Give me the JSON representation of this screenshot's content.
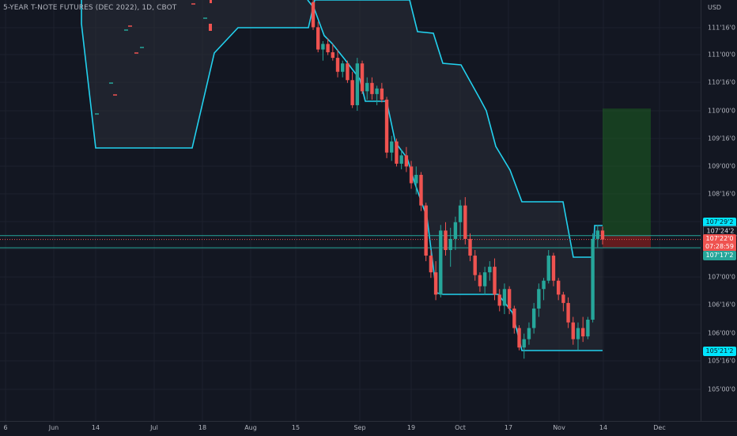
{
  "symbol": {
    "title": "5-YEAR T-NOTE FUTURES (DEC 2022), 1D, CBOT"
  },
  "price_axis": {
    "currency": "USD",
    "ticks": [
      "111'16'0",
      "111'00'0",
      "110'16'0",
      "110'00'0",
      "109'16'0",
      "109'00'0",
      "108'16'0",
      "107'00'0",
      "106'16'0",
      "106'00'0",
      "105'16'0",
      "105'00'0"
    ],
    "labels": {
      "upper_band": "107'29'2",
      "trade_high": "107'24'2",
      "last_price": "107'22'0",
      "countdown": "07:28:59",
      "stop_level": "107'17'2",
      "lower_band": "105'21'2"
    }
  },
  "time_axis": {
    "ticks": [
      "6",
      "Jun",
      "14",
      "Jul",
      "18",
      "Aug",
      "15",
      "Sep",
      "19",
      "Oct",
      "17",
      "Nov",
      "14",
      "Dec"
    ]
  },
  "colors": {
    "background": "#131722",
    "grid": "#1e222d",
    "up": "#26a69a",
    "down": "#ef5350",
    "channel": "#22d1ee",
    "target_zone": "#1b5e20",
    "stop_zone": "#7f1d1d"
  },
  "chart_data": {
    "type": "candlestick",
    "title": "5-YEAR T-NOTE FUTURES (DEC 2022), 1D, CBOT",
    "y_unit": "USD (32nds)",
    "ylim": [
      104.8,
      112.0
    ],
    "upper_channel_line": "cyan step line (Donchian-style)",
    "levels": {
      "upper_band": 107.91,
      "trade_high": 107.76,
      "last_price": 107.69,
      "stop_level": 107.54,
      "lower_band": 105.66,
      "target": 110.04
    },
    "candles": [
      {
        "date": "Aug 22",
        "o": 111.95,
        "h": 112.0,
        "l": 111.45,
        "c": 111.5
      },
      {
        "date": "Aug 23",
        "o": 111.5,
        "h": 111.6,
        "l": 111.05,
        "c": 111.1
      },
      {
        "date": "Aug 24",
        "o": 111.1,
        "h": 111.25,
        "l": 110.9,
        "c": 111.2
      },
      {
        "date": "Aug 25",
        "o": 111.2,
        "h": 111.3,
        "l": 111.0,
        "c": 111.05
      },
      {
        "date": "Aug 26",
        "o": 111.05,
        "h": 111.2,
        "l": 110.9,
        "c": 110.95
      },
      {
        "date": "Aug 29",
        "o": 110.95,
        "h": 111.1,
        "l": 110.6,
        "c": 110.7
      },
      {
        "date": "Aug 30",
        "o": 110.7,
        "h": 110.9,
        "l": 110.6,
        "c": 110.85
      },
      {
        "date": "Aug 31",
        "o": 110.85,
        "h": 110.9,
        "l": 110.5,
        "c": 110.55
      },
      {
        "date": "Sep 1",
        "o": 110.55,
        "h": 110.7,
        "l": 110.05,
        "c": 110.1
      },
      {
        "date": "Sep 2",
        "o": 110.1,
        "h": 110.95,
        "l": 110.0,
        "c": 110.85
      },
      {
        "date": "Sep 6",
        "o": 110.85,
        "h": 110.9,
        "l": 110.3,
        "c": 110.35
      },
      {
        "date": "Sep 7",
        "o": 110.35,
        "h": 110.6,
        "l": 110.2,
        "c": 110.5
      },
      {
        "date": "Sep 8",
        "o": 110.5,
        "h": 110.6,
        "l": 110.2,
        "c": 110.3
      },
      {
        "date": "Sep 9",
        "o": 110.3,
        "h": 110.45,
        "l": 110.1,
        "c": 110.4
      },
      {
        "date": "Sep 12",
        "o": 110.4,
        "h": 110.5,
        "l": 110.15,
        "c": 110.2
      },
      {
        "date": "Sep 13",
        "o": 110.2,
        "h": 110.25,
        "l": 109.15,
        "c": 109.25
      },
      {
        "date": "Sep 14",
        "o": 109.25,
        "h": 109.55,
        "l": 109.1,
        "c": 109.45
      },
      {
        "date": "Sep 15",
        "o": 109.45,
        "h": 109.5,
        "l": 109.0,
        "c": 109.05
      },
      {
        "date": "Sep 16",
        "o": 109.05,
        "h": 109.3,
        "l": 108.95,
        "c": 109.2
      },
      {
        "date": "Sep 19",
        "o": 109.2,
        "h": 109.35,
        "l": 108.9,
        "c": 109.0
      },
      {
        "date": "Sep 20",
        "o": 109.0,
        "h": 109.1,
        "l": 108.6,
        "c": 108.7
      },
      {
        "date": "Sep 21",
        "o": 108.7,
        "h": 109.0,
        "l": 108.5,
        "c": 108.85
      },
      {
        "date": "Sep 22",
        "o": 108.85,
        "h": 108.9,
        "l": 108.2,
        "c": 108.3
      },
      {
        "date": "Sep 23",
        "o": 108.3,
        "h": 108.35,
        "l": 107.3,
        "c": 107.4
      },
      {
        "date": "Sep 26",
        "o": 107.4,
        "h": 107.5,
        "l": 107.0,
        "c": 107.1
      },
      {
        "date": "Sep 27",
        "o": 107.1,
        "h": 107.3,
        "l": 106.6,
        "c": 106.7
      },
      {
        "date": "Sep 28",
        "o": 106.7,
        "h": 107.95,
        "l": 106.65,
        "c": 107.85
      },
      {
        "date": "Sep 29",
        "o": 107.85,
        "h": 108.0,
        "l": 107.4,
        "c": 107.5
      },
      {
        "date": "Sep 30",
        "o": 107.5,
        "h": 107.9,
        "l": 107.2,
        "c": 107.7
      },
      {
        "date": "Oct 3",
        "o": 107.7,
        "h": 108.1,
        "l": 107.5,
        "c": 108.0
      },
      {
        "date": "Oct 4",
        "o": 108.0,
        "h": 108.4,
        "l": 107.7,
        "c": 108.3
      },
      {
        "date": "Oct 5",
        "o": 108.3,
        "h": 108.45,
        "l": 107.6,
        "c": 107.7
      },
      {
        "date": "Oct 6",
        "o": 107.7,
        "h": 107.8,
        "l": 107.3,
        "c": 107.4
      },
      {
        "date": "Oct 7",
        "o": 107.4,
        "h": 107.5,
        "l": 106.95,
        "c": 107.05
      },
      {
        "date": "Oct 10",
        "o": 107.05,
        "h": 107.1,
        "l": 106.75,
        "c": 106.85
      },
      {
        "date": "Oct 11",
        "o": 106.85,
        "h": 107.2,
        "l": 106.7,
        "c": 107.1
      },
      {
        "date": "Oct 12",
        "o": 107.1,
        "h": 107.3,
        "l": 106.95,
        "c": 107.2
      },
      {
        "date": "Oct 13",
        "o": 107.2,
        "h": 107.35,
        "l": 106.6,
        "c": 106.7
      },
      {
        "date": "Oct 14",
        "o": 106.7,
        "h": 106.8,
        "l": 106.4,
        "c": 106.5
      },
      {
        "date": "Oct 17",
        "o": 106.5,
        "h": 106.9,
        "l": 106.35,
        "c": 106.8
      },
      {
        "date": "Oct 18",
        "o": 106.8,
        "h": 106.85,
        "l": 106.35,
        "c": 106.45
      },
      {
        "date": "Oct 19",
        "o": 106.45,
        "h": 106.5,
        "l": 106.0,
        "c": 106.1
      },
      {
        "date": "Oct 20",
        "o": 106.1,
        "h": 106.15,
        "l": 105.7,
        "c": 105.75
      },
      {
        "date": "Oct 21",
        "o": 105.75,
        "h": 106.0,
        "l": 105.55,
        "c": 105.9
      },
      {
        "date": "Oct 24",
        "o": 105.9,
        "h": 106.2,
        "l": 105.8,
        "c": 106.1
      },
      {
        "date": "Oct 25",
        "o": 106.1,
        "h": 106.55,
        "l": 106.0,
        "c": 106.45
      },
      {
        "date": "Oct 26",
        "o": 106.45,
        "h": 106.9,
        "l": 106.3,
        "c": 106.8
      },
      {
        "date": "Oct 27",
        "o": 106.8,
        "h": 107.0,
        "l": 106.6,
        "c": 106.95
      },
      {
        "date": "Oct 28",
        "o": 106.95,
        "h": 107.5,
        "l": 106.9,
        "c": 107.4
      },
      {
        "date": "Oct 31",
        "o": 107.4,
        "h": 107.45,
        "l": 106.85,
        "c": 106.95
      },
      {
        "date": "Nov 1",
        "o": 106.95,
        "h": 107.0,
        "l": 106.6,
        "c": 106.7
      },
      {
        "date": "Nov 2",
        "o": 106.7,
        "h": 106.75,
        "l": 106.4,
        "c": 106.55
      },
      {
        "date": "Nov 3",
        "o": 106.55,
        "h": 106.65,
        "l": 106.1,
        "c": 106.2
      },
      {
        "date": "Nov 4",
        "o": 106.2,
        "h": 106.3,
        "l": 105.8,
        "c": 105.9
      },
      {
        "date": "Nov 7",
        "o": 105.9,
        "h": 106.2,
        "l": 105.7,
        "c": 106.1
      },
      {
        "date": "Nov 8",
        "o": 106.1,
        "h": 106.3,
        "l": 105.85,
        "c": 105.95
      },
      {
        "date": "Nov 9",
        "o": 105.95,
        "h": 106.3,
        "l": 105.9,
        "c": 106.25
      },
      {
        "date": "Nov 10",
        "o": 106.25,
        "h": 107.8,
        "l": 106.2,
        "c": 107.7
      },
      {
        "date": "Nov 11",
        "o": 107.7,
        "h": 107.95,
        "l": 107.55,
        "c": 107.85
      },
      {
        "date": "Nov 14",
        "o": 107.85,
        "h": 107.92,
        "l": 107.6,
        "c": 107.69
      }
    ]
  }
}
